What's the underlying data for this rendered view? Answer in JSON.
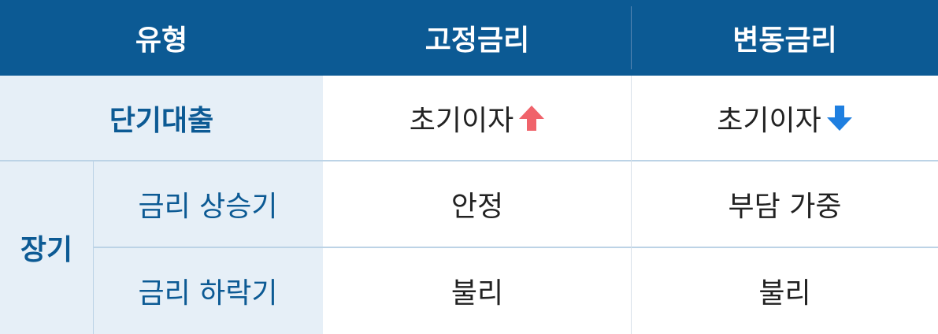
{
  "header": {
    "col_type": "유형",
    "col_fixed": "고정금리",
    "col_variable": "변동금리"
  },
  "rows": {
    "short_term": {
      "label": "단기대출",
      "fixed": "초기이자",
      "variable": "초기이자"
    },
    "long_term": {
      "label": "장기",
      "rising": {
        "label": "금리 상승기",
        "fixed": "안정",
        "variable": "부담 가중"
      },
      "falling": {
        "label": "금리 하락기",
        "fixed": "불리",
        "variable": "불리"
      }
    }
  },
  "icons": {
    "fixed_short": "arrow-up-icon",
    "variable_short": "arrow-down-icon"
  },
  "colors": {
    "header_bg": "#0c5a94",
    "label_bg": "#e6eff7",
    "arrow_up": "#f0636b",
    "arrow_down": "#1f7fe0"
  }
}
